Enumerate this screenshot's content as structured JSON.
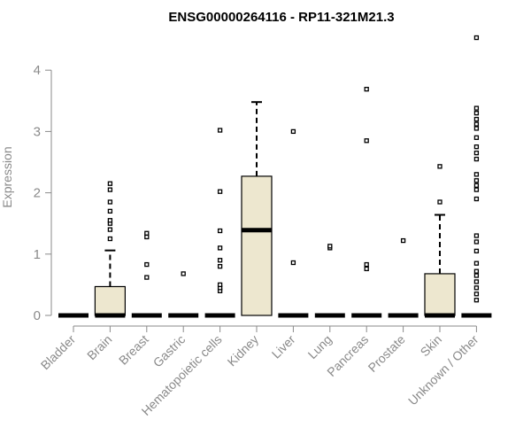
{
  "chart_data": {
    "type": "box",
    "title": "ENSG00000264116 - RP11-321M21.3",
    "xlabel": "",
    "ylabel": "Expression",
    "ylim": [
      0,
      4.6
    ],
    "yticks": [
      0,
      1,
      2,
      3,
      4
    ],
    "ytick_labels": [
      "0",
      "1",
      "2",
      "3",
      "4"
    ],
    "box_fill": "#ede7cf",
    "categories": [
      "Bladder",
      "Brain",
      "Breast",
      "Gastric",
      "Hematopoietic cells",
      "Kidney",
      "Liver",
      "Lung",
      "Pancreas",
      "Prostate",
      "Skin",
      "Unknown / Other"
    ],
    "boxes": [
      {
        "q1": 0,
        "median": 0,
        "q3": 0,
        "whisker_low": 0,
        "whisker_high": 0,
        "outliers": []
      },
      {
        "q1": 0,
        "median": 0,
        "q3": 0.47,
        "whisker_low": 0,
        "whisker_high": 1.06,
        "outliers": [
          1.25,
          1.4,
          1.5,
          1.55,
          1.7,
          1.85,
          2.05,
          2.15
        ]
      },
      {
        "q1": 0,
        "median": 0,
        "q3": 0,
        "whisker_low": 0,
        "whisker_high": 0,
        "outliers": [
          0.62,
          0.83,
          1.28,
          1.34
        ]
      },
      {
        "q1": 0,
        "median": 0,
        "q3": 0,
        "whisker_low": 0,
        "whisker_high": 0,
        "outliers": [
          0.68
        ]
      },
      {
        "q1": 0,
        "median": 0,
        "q3": 0,
        "whisker_low": 0,
        "whisker_high": 0,
        "outliers": [
          0.4,
          0.45,
          0.5,
          0.8,
          0.9,
          1.1,
          1.38,
          2.02,
          3.02
        ]
      },
      {
        "q1": 0,
        "median": 1.39,
        "q3": 2.27,
        "whisker_low": 0,
        "whisker_high": 3.48,
        "outliers": []
      },
      {
        "q1": 0,
        "median": 0,
        "q3": 0,
        "whisker_low": 0,
        "whisker_high": 0,
        "outliers": [
          0.86,
          3.0
        ]
      },
      {
        "q1": 0,
        "median": 0,
        "q3": 0,
        "whisker_low": 0,
        "whisker_high": 0,
        "outliers": [
          1.1,
          1.13
        ]
      },
      {
        "q1": 0,
        "median": 0,
        "q3": 0,
        "whisker_low": 0,
        "whisker_high": 0,
        "outliers": [
          0.76,
          0.83,
          2.85,
          3.69
        ]
      },
      {
        "q1": 0,
        "median": 0,
        "q3": 0,
        "whisker_low": 0,
        "whisker_high": 0,
        "outliers": [
          1.22
        ]
      },
      {
        "q1": 0,
        "median": 0,
        "q3": 0.68,
        "whisker_low": 0,
        "whisker_high": 1.64,
        "outliers": [
          1.85,
          2.43
        ]
      },
      {
        "q1": 0,
        "median": 0,
        "q3": 0,
        "whisker_low": 0,
        "whisker_high": 0,
        "outliers": [
          0.25,
          0.35,
          0.45,
          0.55,
          0.65,
          0.72,
          0.85,
          1.05,
          1.2,
          1.3,
          1.9,
          2.05,
          2.12,
          2.2,
          2.3,
          2.55,
          2.65,
          2.75,
          2.9,
          3.05,
          3.12,
          3.2,
          3.3,
          3.38,
          4.53
        ]
      }
    ]
  }
}
